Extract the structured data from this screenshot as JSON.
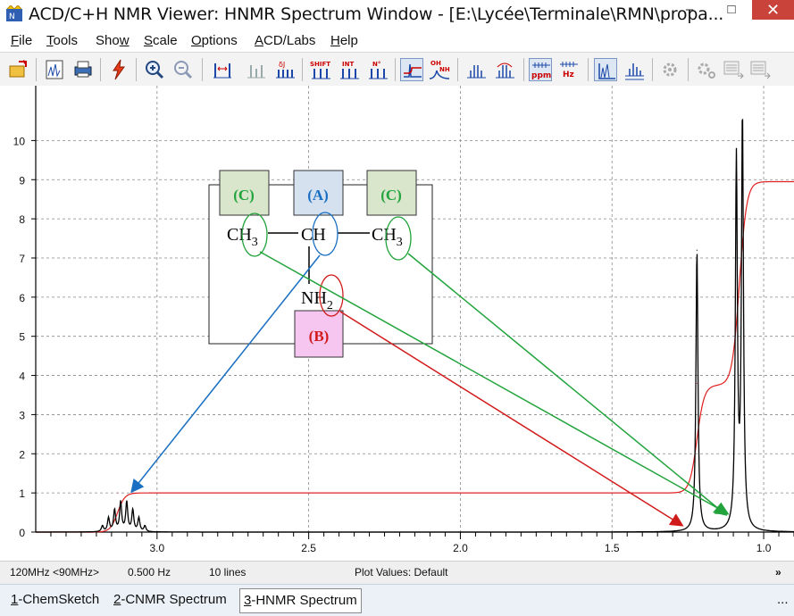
{
  "window": {
    "title": "ACD/C+H NMR Viewer: HNMR Spectrum Window - [E:\\Lycée\\Terminale\\RMN\\propa...",
    "minimize": "–",
    "maximize": "□",
    "close": "✕"
  },
  "menu": [
    {
      "key": "F",
      "rest": "ile"
    },
    {
      "key": "T",
      "rest": "ools"
    },
    {
      "key": "",
      "pre": "Sho",
      "keyw": "w",
      "rest": ""
    },
    {
      "key": "S",
      "rest": "cale"
    },
    {
      "key": "O",
      "rest": "ptions"
    },
    {
      "key": "A",
      "rest": "CD/Labs"
    },
    {
      "key": "H",
      "rest": "elp"
    }
  ],
  "toolbar": {
    "icons": [
      "open-icon",
      "spectrum-icon",
      "print-icon",
      "lightning-icon",
      "zoom-in-icon",
      "zoom-out-icon",
      "peak-width-icon",
      "remove-peaks-icon",
      "coupling-icon",
      "shift-icon",
      "int-icon",
      "n-icon",
      "integration-icon",
      "oh-nh-icon",
      "multiplet-icon",
      "multiplet2-icon",
      "ppm-icon",
      "hz-icon",
      "spectrum-view-icon",
      "spectrum-view2-icon",
      "settings-icon",
      "settings2-icon",
      "export-icon",
      "export2-icon"
    ],
    "shift_label": "SHIFT",
    "int_label": "INT",
    "n_label": "N°",
    "oh_label": "OH",
    "nh_label": "NH",
    "ppm_label": "ppm",
    "hz_label": "Hz"
  },
  "chart_data": {
    "type": "line",
    "xlabel": "",
    "ylabel": "",
    "xlim": [
      3.4,
      0.9
    ],
    "ylim": [
      0,
      11
    ],
    "x_ticks": [
      "3.0",
      "2.5",
      "2.0",
      "1.5",
      "1.0"
    ],
    "y_ticks": [
      "0",
      "1",
      "2",
      "3",
      "4",
      "5",
      "6",
      "7",
      "8",
      "9",
      "10"
    ],
    "series": [
      {
        "color": "#000000",
        "peaks": [
          {
            "x": 3.18,
            "height": 0.15
          },
          {
            "x": 3.16,
            "height": 0.35
          },
          {
            "x": 3.14,
            "height": 0.55
          },
          {
            "x": 3.12,
            "height": 0.75
          },
          {
            "x": 3.1,
            "height": 0.75
          },
          {
            "x": 3.08,
            "height": 0.55
          },
          {
            "x": 3.06,
            "height": 0.35
          },
          {
            "x": 3.04,
            "height": 0.15
          },
          {
            "x": 1.22,
            "height": 7.2
          },
          {
            "x": 1.09,
            "height": 9.4
          },
          {
            "x": 1.07,
            "height": 10.5
          }
        ]
      },
      {
        "color": "#e02020",
        "integral_steps": [
          {
            "x": 3.13,
            "from": 0.0,
            "to": 1.0
          },
          {
            "x": 1.22,
            "from": 1.05,
            "to": 3.8
          },
          {
            "x": 1.08,
            "from": 3.8,
            "to": 9.0
          }
        ]
      }
    ],
    "grid": true
  },
  "annotation": {
    "group_c_left": "(C)",
    "group_a": "(A)",
    "group_c_right": "(C)",
    "group_b": "(B)",
    "ch3_left": "CH",
    "ch3_left_sub": "3",
    "ch": "CH",
    "ch3_right": "CH",
    "ch3_right_sub": "3",
    "nh2": "NH",
    "nh2_sub": "2",
    "colors": {
      "c": "#22a33c",
      "a": "#1a6fc2",
      "b": "#d11a1a"
    }
  },
  "status": {
    "freq": "120MHz <90MHz>",
    "hz": "0.500 Hz",
    "lines": "10 lines",
    "plot_values": "Plot Values: Default",
    "more": "»"
  },
  "tabs": [
    {
      "key": "1",
      "label": "-ChemSketch"
    },
    {
      "key": "2",
      "label": "-CNMR Spectrum"
    },
    {
      "key": "3",
      "label": "-HNMR Spectrum"
    }
  ],
  "tabs_more": "..."
}
